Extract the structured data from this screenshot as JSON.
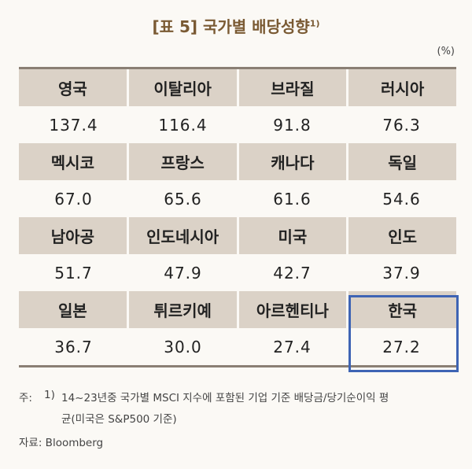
{
  "header": {
    "title": "[표 5] 국가별 배당성향",
    "superscript": "1)",
    "unit": "(%)"
  },
  "table": {
    "groups": [
      {
        "names": [
          "영국",
          "이탈리아",
          "브라질",
          "러시아"
        ],
        "values": [
          "137.4",
          "116.4",
          "91.8",
          "76.3"
        ]
      },
      {
        "names": [
          "멕시코",
          "프랑스",
          "캐나다",
          "독일"
        ],
        "values": [
          "67.0",
          "65.6",
          "61.6",
          "54.6"
        ]
      },
      {
        "names": [
          "남아공",
          "인도네시아",
          "미국",
          "인도"
        ],
        "values": [
          "51.7",
          "47.9",
          "42.7",
          "37.9"
        ]
      },
      {
        "names": [
          "일본",
          "튀르키예",
          "아르헨티나",
          "한국"
        ],
        "values": [
          "36.7",
          "30.0",
          "27.4",
          "27.2"
        ]
      }
    ]
  },
  "footnote": {
    "label": "주:",
    "marker": "1)",
    "lines": [
      "14~23년중 국가별 MSCI 지수에 포함된 기업 기준 배당금/당기순이익 평",
      "균(미국은 S&P500 기준)"
    ]
  },
  "source": "자료: Bloomberg"
}
